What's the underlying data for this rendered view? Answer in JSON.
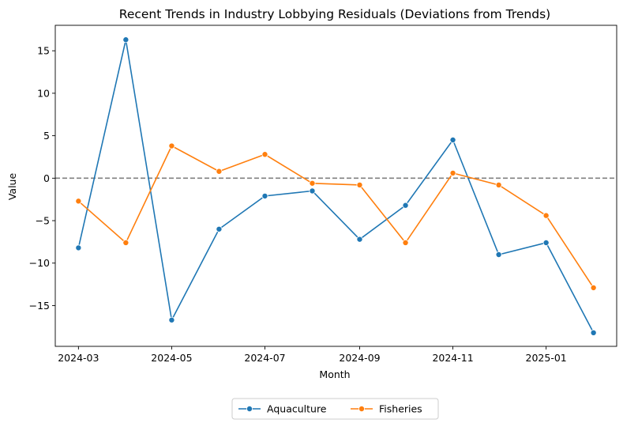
{
  "chart_data": {
    "type": "line",
    "title": "Recent Trends in Industry Lobbying Residuals (Deviations from Trends)",
    "xlabel": "Month",
    "ylabel": "Value",
    "x": [
      "2024-03-01",
      "2024-04-01",
      "2024-05-01",
      "2024-06-01",
      "2024-07-01",
      "2024-08-01",
      "2024-09-01",
      "2024-10-01",
      "2024-11-01",
      "2024-12-01",
      "2025-01-01",
      "2025-02-01"
    ],
    "xticks": [
      "2024-03",
      "2024-05",
      "2024-07",
      "2024-09",
      "2024-11",
      "2025-01"
    ],
    "yticks": [
      -15,
      -10,
      -5,
      0,
      5,
      10,
      15
    ],
    "ylim": [
      -19.8,
      18.0
    ],
    "reference_line": 0,
    "grid": false,
    "legend_position": "bottom-center",
    "series": [
      {
        "name": "Aquaculture",
        "color": "#1f77b4",
        "values": [
          -8.2,
          16.3,
          -16.7,
          -6.0,
          -2.1,
          -1.5,
          -7.2,
          -3.2,
          4.5,
          -9.0,
          -7.6,
          -18.2
        ]
      },
      {
        "name": "Fisheries",
        "color": "#ff7f0e",
        "values": [
          -2.7,
          -7.6,
          3.8,
          0.8,
          2.8,
          -0.6,
          -0.8,
          -7.6,
          0.6,
          -0.8,
          -4.4,
          -12.9
        ]
      }
    ],
    "reference_color": "#808080"
  }
}
